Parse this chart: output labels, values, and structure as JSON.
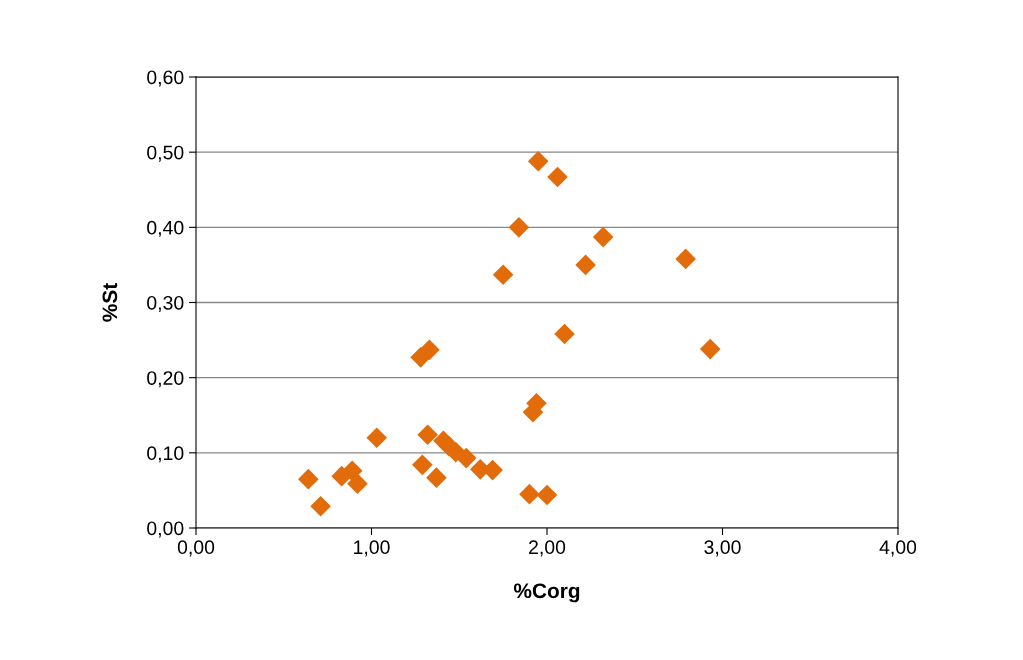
{
  "chart_data": {
    "type": "scatter",
    "xlabel": "%Corg",
    "ylabel": "%St",
    "x": [
      0.64,
      0.71,
      0.83,
      0.89,
      0.92,
      1.03,
      1.28,
      1.33,
      1.29,
      1.32,
      1.37,
      1.41,
      1.44,
      1.48,
      1.54,
      1.62,
      1.69,
      1.75,
      1.84,
      1.9,
      1.92,
      1.94,
      1.95,
      2.0,
      2.06,
      2.1,
      2.22,
      2.32,
      2.79,
      2.93
    ],
    "series": [
      {
        "color": "#e36c0a",
        "values": [
          0.065,
          0.029,
          0.069,
          0.076,
          0.059,
          0.12,
          0.227,
          0.237,
          0.084,
          0.124,
          0.067,
          0.116,
          0.109,
          0.101,
          0.093,
          0.078,
          0.077,
          0.337,
          0.4,
          0.045,
          0.154,
          0.166,
          0.488,
          0.044,
          0.467,
          0.258,
          0.35,
          0.387,
          0.358,
          0.238
        ]
      }
    ],
    "xlim": [
      0,
      4
    ],
    "xticks": [
      {
        "value": 0,
        "label": "0,00"
      },
      {
        "value": 1,
        "label": "1,00"
      },
      {
        "value": 2,
        "label": "2,00"
      },
      {
        "value": 3,
        "label": "3,00"
      },
      {
        "value": 4,
        "label": "4,00"
      }
    ],
    "ylim": [
      0,
      0.6
    ],
    "yticks": [
      {
        "value": 0,
        "label": "0,00"
      },
      {
        "value": 0.1,
        "label": "0,10"
      },
      {
        "value": 0.2,
        "label": "0,20"
      },
      {
        "value": 0.3,
        "label": "0,30"
      },
      {
        "value": 0.4,
        "label": "0,40"
      },
      {
        "value": 0.5,
        "label": "0,50"
      },
      {
        "value": 0.6,
        "label": "0,60"
      }
    ],
    "grid": "y",
    "marker": "diamond",
    "legend": false
  }
}
